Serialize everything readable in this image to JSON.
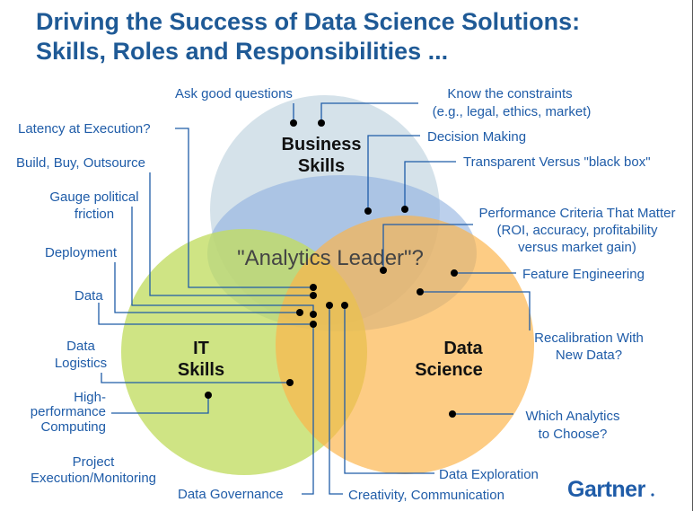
{
  "title": {
    "line1": "Driving the Success of Data Science Solutions:",
    "line2": "Skills, Roles and Responsibilities ..."
  },
  "circles": {
    "business": {
      "line1": "Business",
      "line2": "Skills",
      "color": "#d5e2ea"
    },
    "it": {
      "line1": "IT",
      "line2": "Skills",
      "color": "#c8e07a"
    },
    "data_science": {
      "line1": "Data",
      "line2": "Science",
      "color": "#fcc474"
    },
    "center": {
      "label": "\"Analytics Leader\"?",
      "color": "#8fb0e0"
    }
  },
  "labels": {
    "ask": "Ask good questions",
    "know1": "Know the constraints",
    "know2": "(e.g., legal, ethics, market)",
    "decision": "Decision Making",
    "transparent": "Transparent Versus \"black box\"",
    "perf1": "Performance Criteria That Matter",
    "perf2": "(ROI, accuracy, profitability",
    "perf3": "versus market gain)",
    "feature": "Feature Engineering",
    "recal1": "Recalibration With",
    "recal2": "New Data?",
    "which1": "Which Analytics",
    "which2": "to Choose?",
    "exploration": "Data Exploration",
    "creativity": "Creativity, Communication",
    "governance": "Data Governance",
    "latency": "Latency at Execution?",
    "build": "Build, Buy, Outsource",
    "gauge1": "Gauge political",
    "gauge2": "friction",
    "deployment": "Deployment",
    "data": "Data",
    "logistics1": "Data",
    "logistics2": "Logistics",
    "hpc1": "High-",
    "hpc2": "performance",
    "hpc3": "Computing",
    "project1": "Project",
    "project2": "Execution/Monitoring"
  },
  "logo": {
    "text": "Gartner",
    "color": "#1f5ca8"
  },
  "accent": "#1f5ca8"
}
